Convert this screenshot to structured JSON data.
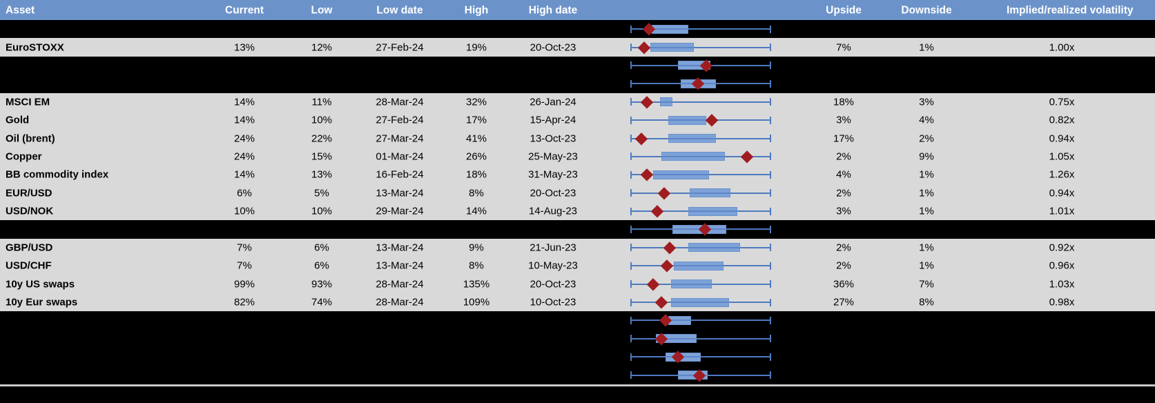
{
  "title": "Asset volatility ranges table with box plots",
  "colors": {
    "header_bg": "#6c93c9",
    "header_text": "#ffffff",
    "row_bg": "#d9d9d9",
    "spacer_bg": "#000000",
    "cell_text": "#000000",
    "whisker": "#4e7abf",
    "box_fill": "#7da2d8",
    "box_border": "#6a92cc",
    "box_stripe": "#5e85c5",
    "marker": "#9f1d20",
    "divider": "#c9c9c9",
    "page_bg": "#000000"
  },
  "header": {
    "columns": [
      "Asset",
      "Current",
      "Low",
      "Low date",
      "High",
      "High date",
      "Upside",
      "Downside",
      "Implied/realized volatility"
    ]
  },
  "chart_data": {
    "type": "table",
    "columns": [
      "Asset",
      "Current",
      "Low",
      "Low date",
      "High",
      "High date",
      "Upside",
      "Downside",
      "Implied/realized volatility"
    ],
    "boxplot_axis": {
      "min": 0,
      "max": 1
    },
    "rows": [
      {
        "kind": "spacer",
        "box": {
          "whisker_lo": 0,
          "q1": 0.15,
          "q3": 0.41,
          "whisker_hi": 1,
          "marker": 0.13
        }
      },
      {
        "kind": "data",
        "asset": "EuroSTOXX",
        "current": "13%",
        "low": "12%",
        "low_date": "27-Feb-24",
        "high": "19%",
        "high_date": "20-Oct-23",
        "upside": "7%",
        "downside": "1%",
        "implied_realized": "1.00x",
        "box": {
          "whisker_lo": 0,
          "q1": 0.14,
          "q3": 0.45,
          "whisker_hi": 1,
          "marker": 0.1
        }
      },
      {
        "kind": "spacer",
        "box": {
          "whisker_lo": 0,
          "q1": 0.34,
          "q3": 0.57,
          "whisker_hi": 1,
          "marker": 0.54
        }
      },
      {
        "kind": "spacer",
        "box": {
          "whisker_lo": 0,
          "q1": 0.36,
          "q3": 0.61,
          "whisker_hi": 1,
          "marker": 0.48
        }
      },
      {
        "kind": "data",
        "asset": "MSCI EM",
        "current": "14%",
        "low": "11%",
        "low_date": "28-Mar-24",
        "high": "32%",
        "high_date": "26-Jan-24",
        "upside": "18%",
        "downside": "3%",
        "implied_realized": "0.75x",
        "box": {
          "whisker_lo": 0,
          "q1": 0.21,
          "q3": 0.3,
          "whisker_hi": 1,
          "marker": 0.12
        }
      },
      {
        "kind": "data",
        "asset": "Gold",
        "current": "14%",
        "low": "10%",
        "low_date": "27-Feb-24",
        "high": "17%",
        "high_date": "15-Apr-24",
        "upside": "3%",
        "downside": "4%",
        "implied_realized": "0.82x",
        "box": {
          "whisker_lo": 0,
          "q1": 0.27,
          "q3": 0.54,
          "whisker_hi": 1,
          "marker": 0.58
        }
      },
      {
        "kind": "data",
        "asset": "Oil (brent)",
        "current": "24%",
        "low": "22%",
        "low_date": "27-Mar-24",
        "high": "41%",
        "high_date": "13-Oct-23",
        "upside": "17%",
        "downside": "2%",
        "implied_realized": "0.94x",
        "box": {
          "whisker_lo": 0,
          "q1": 0.27,
          "q3": 0.61,
          "whisker_hi": 1,
          "marker": 0.08
        }
      },
      {
        "kind": "data",
        "asset": "Copper",
        "current": "24%",
        "low": "15%",
        "low_date": "01-Mar-24",
        "high": "26%",
        "high_date": "25-May-23",
        "upside": "2%",
        "downside": "9%",
        "implied_realized": "1.05x",
        "box": {
          "whisker_lo": 0,
          "q1": 0.22,
          "q3": 0.67,
          "whisker_hi": 1,
          "marker": 0.83
        }
      },
      {
        "kind": "data",
        "asset": "BB commodity index",
        "current": "14%",
        "low": "13%",
        "low_date": "16-Feb-24",
        "high": "18%",
        "high_date": "31-May-23",
        "upside": "4%",
        "downside": "1%",
        "implied_realized": "1.26x",
        "box": {
          "whisker_lo": 0,
          "q1": 0.16,
          "q3": 0.56,
          "whisker_hi": 1,
          "marker": 0.12
        }
      },
      {
        "kind": "data",
        "asset": "EUR/USD",
        "current": "6%",
        "low": "5%",
        "low_date": "13-Mar-24",
        "high": "8%",
        "high_date": "20-Oct-23",
        "upside": "2%",
        "downside": "1%",
        "implied_realized": "0.94x",
        "box": {
          "whisker_lo": 0,
          "q1": 0.42,
          "q3": 0.71,
          "whisker_hi": 1,
          "marker": 0.24
        }
      },
      {
        "kind": "data",
        "asset": "USD/NOK",
        "current": "10%",
        "low": "10%",
        "low_date": "29-Mar-24",
        "high": "14%",
        "high_date": "14-Aug-23",
        "upside": "3%",
        "downside": "1%",
        "implied_realized": "1.01x",
        "box": {
          "whisker_lo": 0,
          "q1": 0.41,
          "q3": 0.76,
          "whisker_hi": 1,
          "marker": 0.19
        }
      },
      {
        "kind": "spacer",
        "box": {
          "whisker_lo": 0,
          "q1": 0.3,
          "q3": 0.68,
          "whisker_hi": 1,
          "marker": 0.53
        }
      },
      {
        "kind": "data",
        "asset": "GBP/USD",
        "current": "7%",
        "low": "6%",
        "low_date": "13-Mar-24",
        "high": "9%",
        "high_date": "21-Jun-23",
        "upside": "2%",
        "downside": "1%",
        "implied_realized": "0.92x",
        "box": {
          "whisker_lo": 0,
          "q1": 0.41,
          "q3": 0.78,
          "whisker_hi": 1,
          "marker": 0.28
        }
      },
      {
        "kind": "data",
        "asset": "USD/CHF",
        "current": "7%",
        "low": "6%",
        "low_date": "13-Mar-24",
        "high": "8%",
        "high_date": "10-May-23",
        "upside": "2%",
        "downside": "1%",
        "implied_realized": "0.96x",
        "box": {
          "whisker_lo": 0,
          "q1": 0.31,
          "q3": 0.66,
          "whisker_hi": 1,
          "marker": 0.26
        }
      },
      {
        "kind": "data",
        "asset": "10y US swaps",
        "current": "99%",
        "low": "93%",
        "low_date": "28-Mar-24",
        "high": "135%",
        "high_date": "20-Oct-23",
        "upside": "36%",
        "downside": "7%",
        "implied_realized": "1.03x",
        "box": {
          "whisker_lo": 0,
          "q1": 0.29,
          "q3": 0.58,
          "whisker_hi": 1,
          "marker": 0.16
        }
      },
      {
        "kind": "data",
        "asset": "10y Eur swaps",
        "current": "82%",
        "low": "74%",
        "low_date": "28-Mar-24",
        "high": "109%",
        "high_date": "10-Oct-23",
        "upside": "27%",
        "downside": "8%",
        "implied_realized": "0.98x",
        "box": {
          "whisker_lo": 0,
          "q1": 0.29,
          "q3": 0.7,
          "whisker_hi": 1,
          "marker": 0.22
        }
      },
      {
        "kind": "spacer",
        "box": {
          "whisker_lo": 0,
          "q1": 0.27,
          "q3": 0.43,
          "whisker_hi": 1,
          "marker": 0.25
        }
      },
      {
        "kind": "spacer",
        "box": {
          "whisker_lo": 0,
          "q1": 0.18,
          "q3": 0.47,
          "whisker_hi": 1,
          "marker": 0.22
        }
      },
      {
        "kind": "spacer",
        "box": {
          "whisker_lo": 0,
          "q1": 0.25,
          "q3": 0.5,
          "whisker_hi": 1,
          "marker": 0.34
        }
      },
      {
        "kind": "spacer",
        "box": {
          "whisker_lo": 0,
          "q1": 0.34,
          "q3": 0.55,
          "whisker_hi": 1,
          "marker": 0.49
        }
      }
    ]
  }
}
